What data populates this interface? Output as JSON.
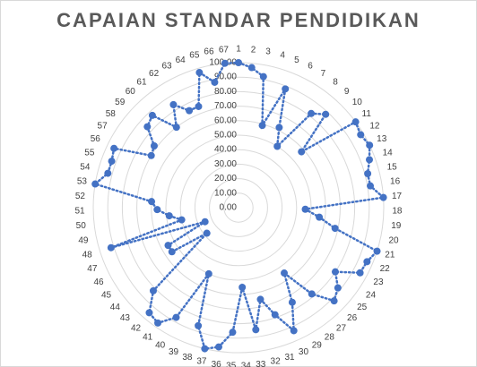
{
  "chart_data": {
    "type": "radar",
    "title": "CAPAIAN STANDAR PENDIDIKAN",
    "categories": [
      "1",
      "2",
      "3",
      "4",
      "5",
      "6",
      "7",
      "8",
      "9",
      "10",
      "11",
      "12",
      "13",
      "14",
      "15",
      "16",
      "17",
      "18",
      "19",
      "20",
      "21",
      "22",
      "23",
      "24",
      "25",
      "26",
      "27",
      "28",
      "29",
      "30",
      "31",
      "32",
      "33",
      "34",
      "35",
      "36",
      "37",
      "38",
      "39",
      "40",
      "41",
      "42",
      "43",
      "44",
      "45",
      "46",
      "47",
      "48",
      "49",
      "50",
      "51",
      "52",
      "53",
      "54",
      "55",
      "56",
      "57",
      "58",
      "59",
      "60",
      "61",
      "62",
      "63",
      "64",
      "65",
      "66",
      "67"
    ],
    "values": [
      100,
      97,
      92,
      59,
      88,
      62,
      50,
      82,
      88,
      58,
      100,
      98,
      100,
      96,
      92,
      92,
      100,
      46,
      56,
      68,
      100,
      96,
      95,
      80,
      88,
      92,
      78,
      55,
      75,
      93,
      78,
      65,
      85,
      55,
      86,
      97,
      100,
      86,
      50,
      87,
      97,
      95,
      82,
      28,
      55,
      55,
      25,
      92,
      40,
      48,
      56,
      60,
      100,
      93,
      93,
      95,
      70,
      72,
      84,
      87,
      70,
      84,
      75,
      75,
      97,
      88,
      100
    ],
    "tick_labels": [
      "0.00",
      "10.00",
      "20.00",
      "30.00",
      "40.00",
      "50.00",
      "60.00",
      "70.00",
      "80.00",
      "90.00",
      "100.00"
    ],
    "rlim": [
      0,
      100
    ],
    "series_color": "#4472c4",
    "grid_color": "#d9d9d9"
  }
}
